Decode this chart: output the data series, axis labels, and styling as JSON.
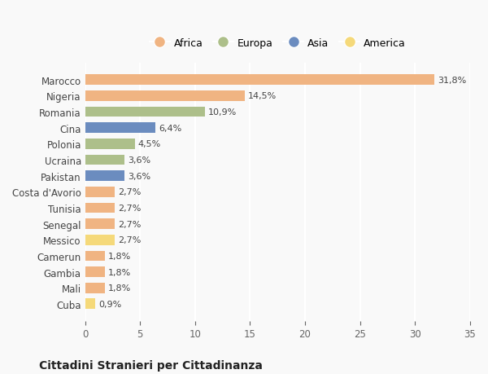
{
  "countries": [
    "Marocco",
    "Nigeria",
    "Romania",
    "Cina",
    "Polonia",
    "Ucraina",
    "Pakistan",
    "Costa d'Avorio",
    "Tunisia",
    "Senegal",
    "Messico",
    "Camerun",
    "Gambia",
    "Mali",
    "Cuba"
  ],
  "values": [
    31.8,
    14.5,
    10.9,
    6.4,
    4.5,
    3.6,
    3.6,
    2.7,
    2.7,
    2.7,
    2.7,
    1.8,
    1.8,
    1.8,
    0.9
  ],
  "continents": [
    "Africa",
    "Africa",
    "Europa",
    "Asia",
    "Europa",
    "Europa",
    "Asia",
    "Africa",
    "Africa",
    "Africa",
    "America",
    "Africa",
    "Africa",
    "Africa",
    "America"
  ],
  "continent_colors": {
    "Africa": "#F0B482",
    "Europa": "#ADBF8A",
    "Asia": "#6B8CBF",
    "America": "#F5D97A"
  },
  "legend_order": [
    "Africa",
    "Europa",
    "Asia",
    "America"
  ],
  "title": "Cittadini Stranieri per Cittadinanza",
  "xlim": [
    0,
    35
  ],
  "xticks": [
    0,
    5,
    10,
    15,
    20,
    25,
    30,
    35
  ],
  "bg_color": "#f9f9f9",
  "grid_color": "#ffffff",
  "bar_height": 0.65
}
